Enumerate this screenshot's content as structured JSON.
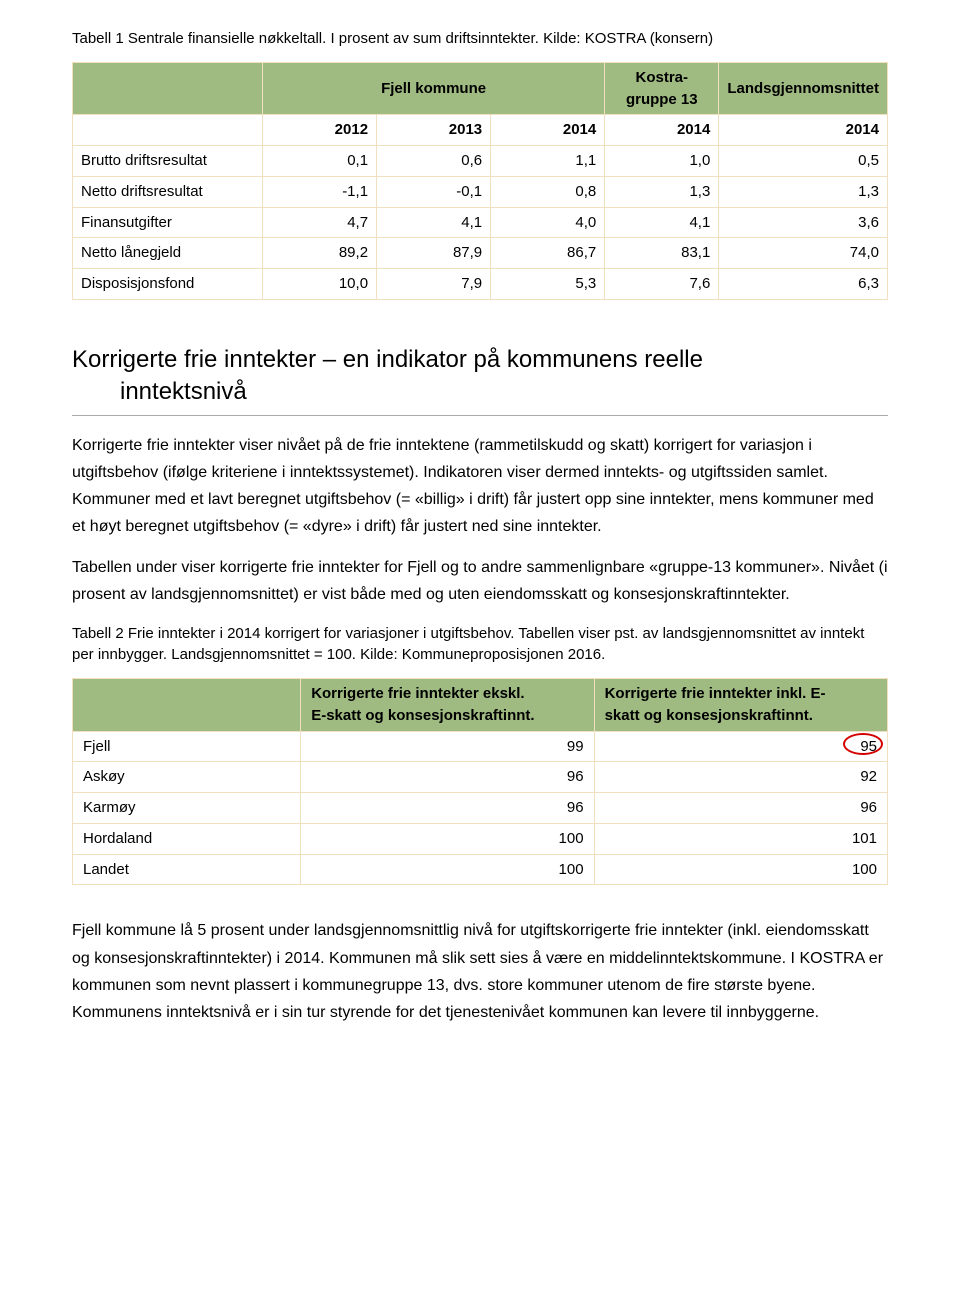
{
  "table1": {
    "caption": "Tabell 1 Sentrale finansielle nøkkeltall. I prosent av sum driftsinntekter. Kilde: KOSTRA (konsern)",
    "group_headers": [
      "",
      "Fjell kommune",
      "Kostra-gruppe 13",
      "Landsgjennomsnittet"
    ],
    "group_spans": [
      1,
      3,
      1,
      1
    ],
    "year_headers": [
      "",
      "2012",
      "2013",
      "2014",
      "2014",
      "2014"
    ],
    "rows": [
      {
        "label": "Brutto driftsresultat",
        "vals": [
          "0,1",
          "0,6",
          "1,1",
          "1,0",
          "0,5"
        ]
      },
      {
        "label": "Netto driftsresultat",
        "vals": [
          "-1,1",
          "-0,1",
          "0,8",
          "1,3",
          "1,3"
        ]
      },
      {
        "label": "Finansutgifter",
        "vals": [
          "4,7",
          "4,1",
          "4,0",
          "4,1",
          "3,6"
        ]
      },
      {
        "label": "Netto lånegjeld",
        "vals": [
          "89,2",
          "87,9",
          "86,7",
          "83,1",
          "74,0"
        ]
      },
      {
        "label": "Disposisjonsfond",
        "vals": [
          "10,0",
          "7,9",
          "5,3",
          "7,6",
          "6,3"
        ]
      }
    ],
    "header_bg": "#a0bb82",
    "border_color": "#f0e0c0"
  },
  "section": {
    "title_line1": "Korrigerte frie inntekter – en indikator på kommunens reelle",
    "title_line2": "inntektsnivå"
  },
  "para1": "Korrigerte frie inntekter viser nivået på de frie inntektene (rammetilskudd og skatt) korrigert for variasjon i utgiftsbehov (ifølge kriteriene i inntektssystemet). Indikatoren viser dermed inntekts- og utgiftssiden samlet. Kommuner med et lavt beregnet utgiftsbehov (= «billig» i drift) får justert opp sine inntekter, mens kommuner med et høyt beregnet utgiftsbehov (= «dyre» i drift) får justert ned sine inntekter.",
  "para2": "Tabellen under viser korrigerte frie inntekter for Fjell og to andre sammenlignbare «gruppe-13 kommuner». Nivået (i prosent av landsgjennomsnittet) er vist både med og uten eiendomsskatt og konsesjonskraftinntekter.",
  "table2": {
    "caption": "Tabell 2 Frie inntekter i 2014 korrigert for variasjoner i utgiftsbehov. Tabellen viser pst. av landsgjennomsnittet av inntekt per innbygger. Landsgjennomsnittet = 100. Kilde: Kommuneproposisjonen 2016.",
    "col_headers": {
      "c1_l1": "Korrigerte frie inntekter ekskl.",
      "c1_l2": "E-skatt og konsesjonskraftinnt.",
      "c2_l1": "Korrigerte frie inntekter inkl. E-",
      "c2_l2": "skatt og konsesjonskraftinnt."
    },
    "rows": [
      {
        "label": "Fjell",
        "v1": "99",
        "v2": "95",
        "circled": true
      },
      {
        "label": "Askøy",
        "v1": "96",
        "v2": "92"
      },
      {
        "label": "Karmøy",
        "v1": "96",
        "v2": "96"
      },
      {
        "label": "Hordaland",
        "v1": "100",
        "v2": "101"
      },
      {
        "label": "Landet",
        "v1": "100",
        "v2": "100"
      }
    ],
    "header_bg": "#a0bb82",
    "border_color": "#f0e0c0",
    "circle_color": "#d40000"
  },
  "para3": "Fjell kommune lå 5 prosent under landsgjennomsnittlig nivå for utgiftskorrigerte frie inntekter (inkl. eiendomsskatt og konsesjonskraftinntekter) i 2014. Kommunen må slik sett sies å være en middelinntektskommune. I KOSTRA er kommunen som nevnt plassert i kommunegruppe 13, dvs. store kommuner utenom de fire største byene. Kommunens inntektsnivå er i sin tur styrende for det tjenestenivået kommunen kan levere til innbyggerne."
}
